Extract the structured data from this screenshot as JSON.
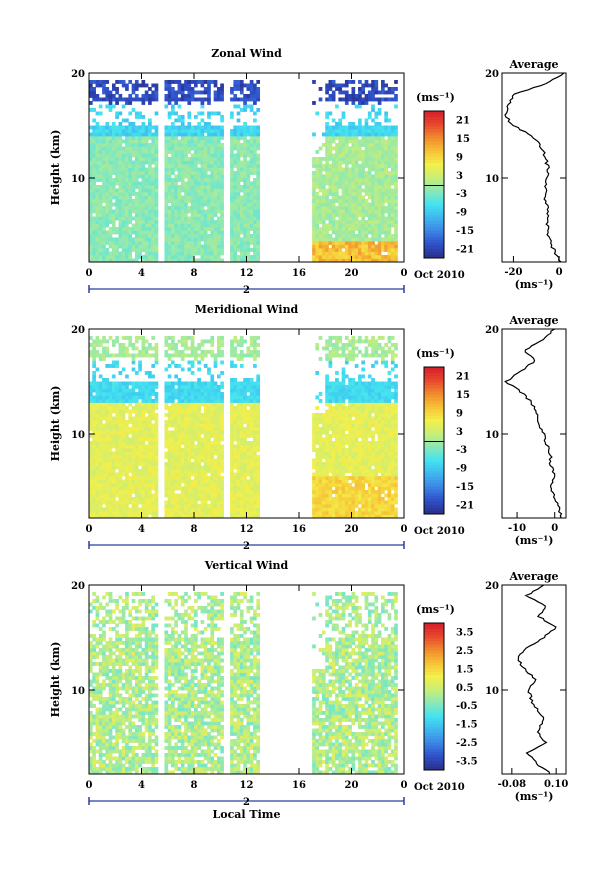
{
  "chart_data": [
    {
      "type": "heatmap",
      "title": "Zonal Wind",
      "ylabel": "Height (km)",
      "xlabel": "",
      "xlim": [
        0,
        24
      ],
      "ylim": [
        2,
        20
      ],
      "xticks": [
        "0",
        "4",
        "8",
        "12",
        "16",
        "20",
        "0"
      ],
      "yticks": [
        "10",
        "20"
      ],
      "date_label": "2",
      "month_label": "Oct 2010",
      "colorbar": {
        "units": "(ms⁻¹)",
        "ticks": [
          "21",
          "15",
          "9",
          "3",
          "-3",
          "-9",
          "-15",
          "-21"
        ],
        "range": [
          -24,
          24
        ]
      },
      "data_gaps_hours": [
        [
          5.3,
          5.8
        ],
        [
          10.3,
          10.8
        ],
        [
          13.0,
          17.1
        ]
      ],
      "profile": {
        "title": "Average",
        "xlabel": "(ms⁻¹)",
        "xticks": [
          "-20",
          "0"
        ],
        "xlim": [
          -25,
          3
        ],
        "heights_km": [
          2,
          3,
          4,
          5,
          6,
          7,
          8,
          9,
          10,
          11,
          12,
          13,
          14,
          15,
          16,
          17,
          18,
          19,
          20
        ],
        "values": [
          1,
          -2,
          -4,
          -5,
          -5,
          -5,
          -6,
          -6,
          -5,
          -5,
          -6,
          -8,
          -12,
          -20,
          -24,
          -22,
          -20,
          -5,
          2
        ]
      }
    },
    {
      "type": "heatmap",
      "title": "Meridional Wind",
      "ylabel": "Height (km)",
      "xlabel": "",
      "xlim": [
        0,
        24
      ],
      "ylim": [
        2,
        20
      ],
      "xticks": [
        "0",
        "4",
        "8",
        "12",
        "16",
        "20",
        "0"
      ],
      "yticks": [
        "10",
        "20"
      ],
      "date_label": "2",
      "month_label": "Oct 2010",
      "colorbar": {
        "units": "(ms⁻¹)",
        "ticks": [
          "21",
          "15",
          "9",
          "3",
          "-3",
          "-9",
          "-15",
          "-21"
        ],
        "range": [
          -24,
          24
        ]
      },
      "data_gaps_hours": [
        [
          5.3,
          5.8
        ],
        [
          10.3,
          10.8
        ],
        [
          13.0,
          17.1
        ]
      ],
      "profile": {
        "title": "Average",
        "xlabel": "(ms⁻¹)",
        "xticks": [
          "-10",
          "0"
        ],
        "xlim": [
          -14,
          3
        ],
        "heights_km": [
          2,
          3,
          4,
          5,
          6,
          7,
          8,
          9,
          10,
          11,
          12,
          13,
          14,
          15,
          16,
          17,
          18,
          19,
          20
        ],
        "values": [
          2,
          1,
          0,
          -1,
          0,
          -1,
          -1,
          -2,
          -3,
          -4,
          -5,
          -6,
          -9,
          -13,
          -9,
          -5,
          -8,
          -3,
          0
        ]
      }
    },
    {
      "type": "heatmap",
      "title": "Vertical Wind",
      "ylabel": "Height (km)",
      "xlabel": "Local Time",
      "xlim": [
        0,
        24
      ],
      "ylim": [
        2,
        20
      ],
      "xticks": [
        "0",
        "4",
        "8",
        "12",
        "16",
        "20",
        "0"
      ],
      "yticks": [
        "10",
        "20"
      ],
      "date_label": "2",
      "month_label": "Oct 2010",
      "colorbar": {
        "units": "(ms⁻¹)",
        "ticks": [
          "3.5",
          "2.5",
          "1.5",
          "0.5",
          "-0.5",
          "-1.5",
          "-2.5",
          "-3.5"
        ],
        "range": [
          -4,
          4
        ]
      },
      "data_gaps_hours": [
        [
          5.3,
          5.8
        ],
        [
          10.3,
          10.8
        ],
        [
          13.0,
          17.1
        ]
      ],
      "profile": {
        "title": "Average",
        "xlabel": "(ms⁻¹)",
        "xticks": [
          "-0.08",
          "0.10"
        ],
        "xlim": [
          -0.12,
          0.14
        ],
        "heights_km": [
          2,
          3,
          4,
          5,
          6,
          7,
          8,
          9,
          10,
          11,
          12,
          13,
          14,
          15,
          16,
          17,
          18,
          19,
          20
        ],
        "values": [
          0.08,
          0.02,
          -0.02,
          0.06,
          0.02,
          0.05,
          0.03,
          0.0,
          -0.01,
          0.02,
          -0.03,
          -0.06,
          -0.02,
          0.05,
          0.1,
          0.03,
          0.06,
          -0.02,
          0.05
        ]
      }
    }
  ],
  "colors": {
    "colormap": [
      "#2b2f86",
      "#2f4fc9",
      "#3c84e6",
      "#3fb6ef",
      "#43e3f0",
      "#8ae8b8",
      "#c8ee77",
      "#f4ef4a",
      "#f6c236",
      "#f08a2e",
      "#e8462c",
      "#d31f2b"
    ],
    "axis": "#000000",
    "date_bar": "#2a3d9c"
  }
}
